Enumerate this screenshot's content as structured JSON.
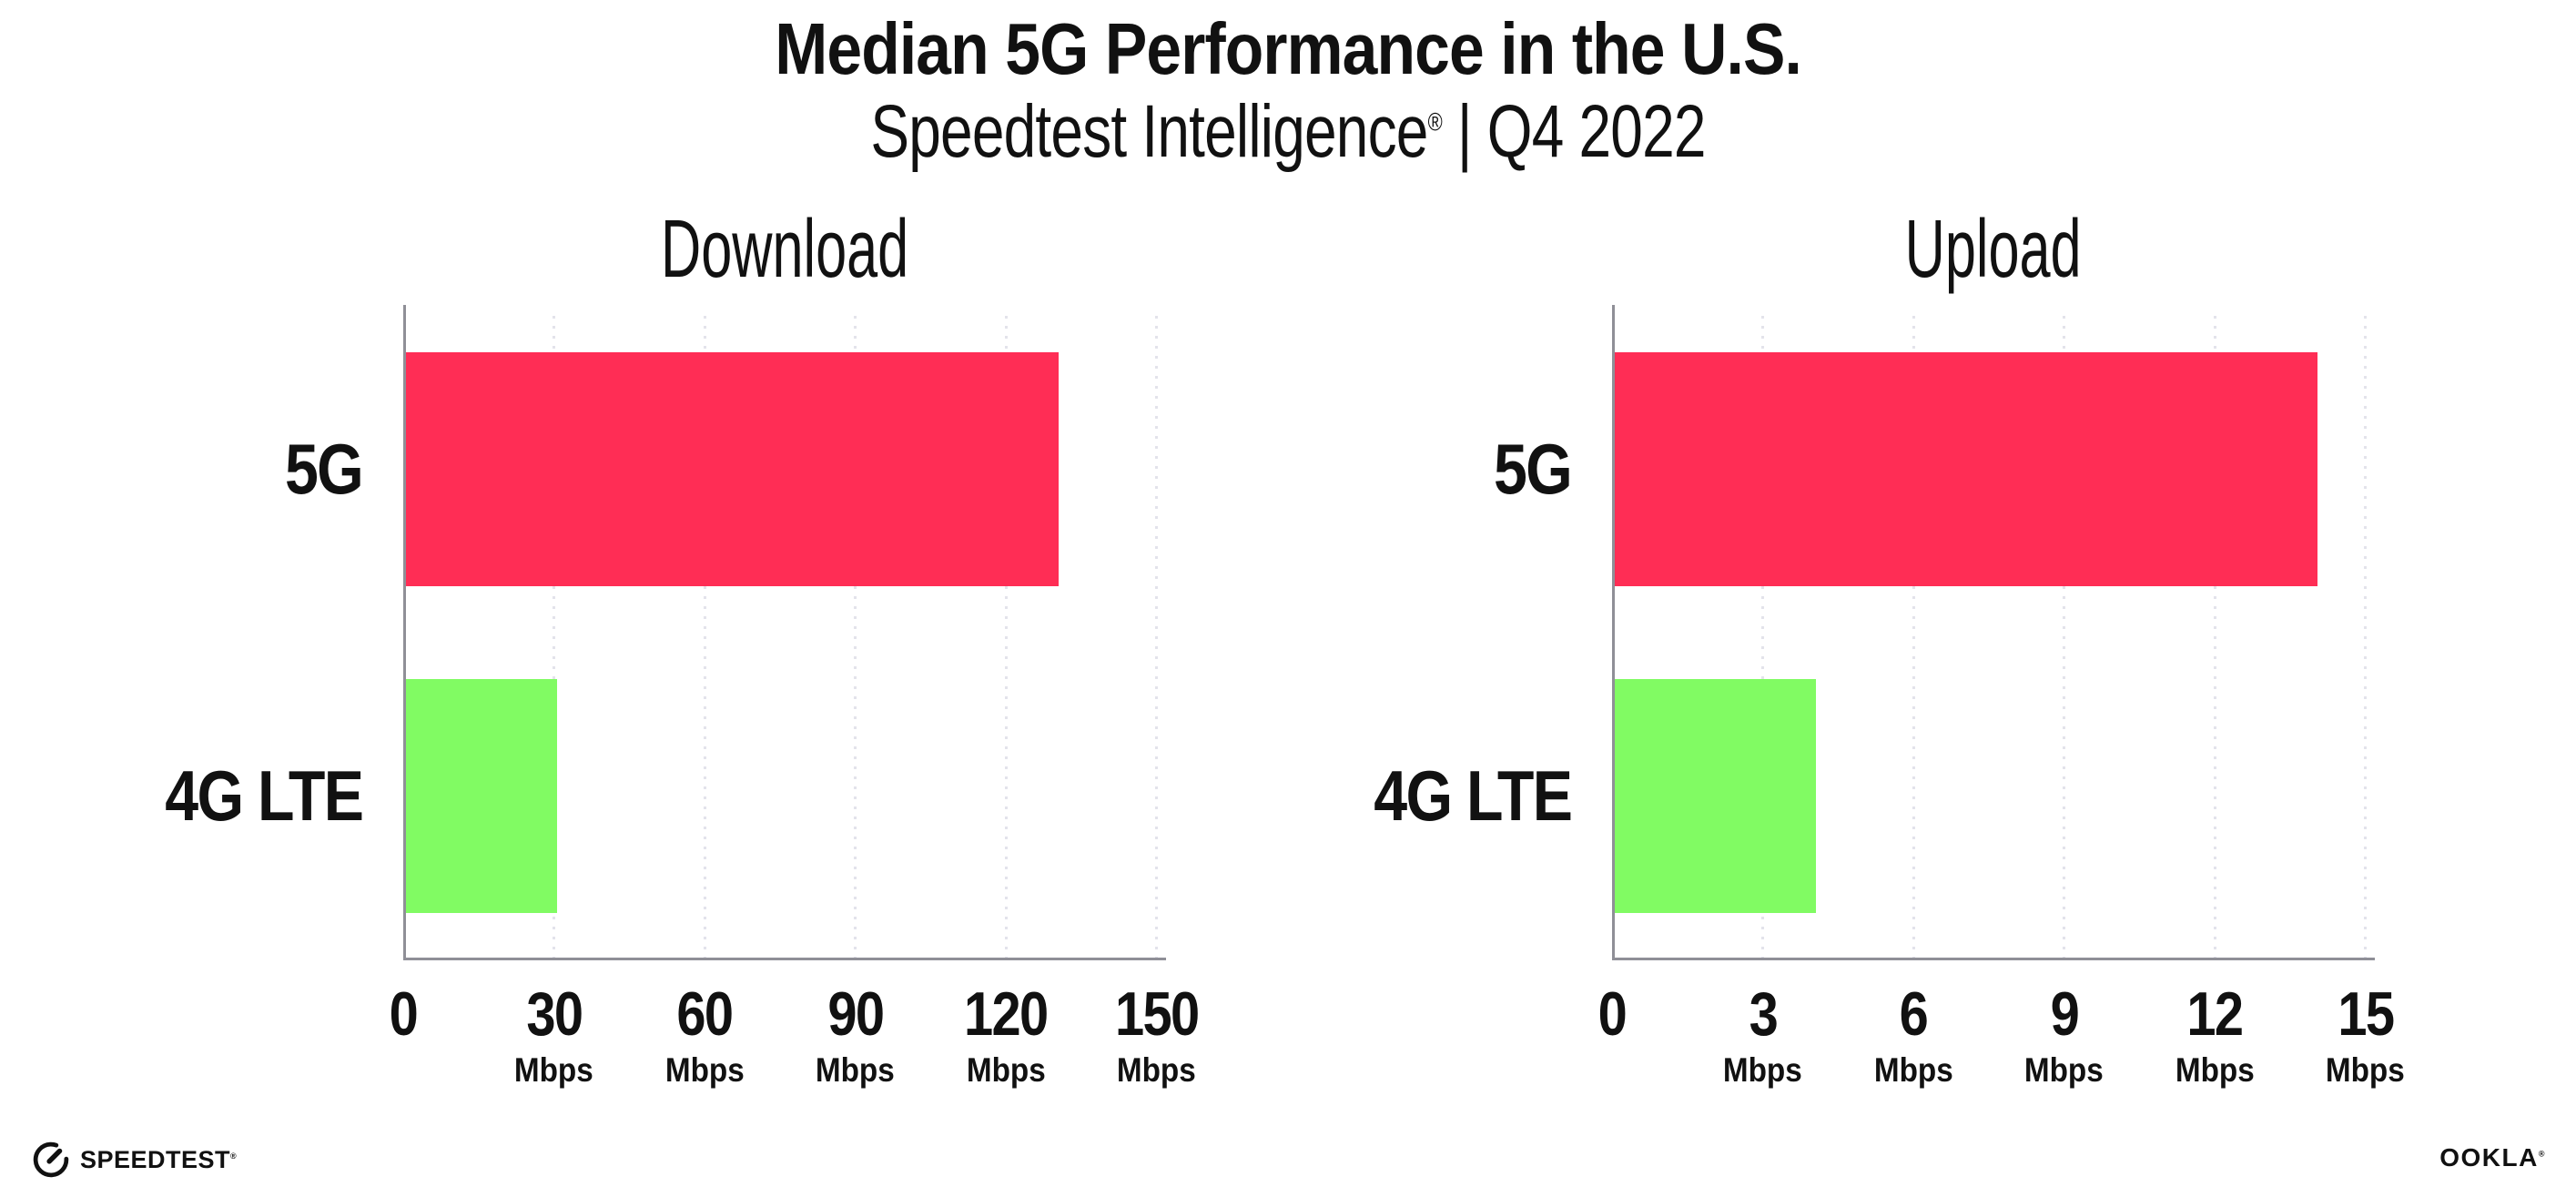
{
  "page": {
    "title": "Median 5G Performance in the U.S.",
    "subtitle_brand": "Speedtest Intelligence",
    "subtitle_reg": "®",
    "subtitle_rest": " | Q4 2022"
  },
  "footer": {
    "speedtest_label": "SPEEDTEST",
    "speedtest_reg": "®",
    "ookla_label": "OOKLA",
    "ookla_reg": "®"
  },
  "colors": {
    "bar_5g": "#FF2D55",
    "bar_4g_lte": "#81FB63",
    "gridline": "#E3E3EB",
    "axis": "#8F8F97",
    "text": "#111111"
  },
  "chart_data": [
    {
      "type": "bar",
      "orientation": "horizontal",
      "title": "Download",
      "categories": [
        "5G",
        "4G LTE"
      ],
      "values": [
        130,
        30
      ],
      "value_unit": "Mbps",
      "xlim": [
        0,
        150
      ],
      "xticks": [
        0,
        30,
        60,
        90,
        120,
        150
      ],
      "xtick_unit_label": "Mbps",
      "bar_colors": [
        "#FF2D55",
        "#81FB63"
      ],
      "grid": "dotted-vertical",
      "legend": "none"
    },
    {
      "type": "bar",
      "orientation": "horizontal",
      "title": "Upload",
      "categories": [
        "5G",
        "4G LTE"
      ],
      "values": [
        14,
        4
      ],
      "value_unit": "Mbps",
      "xlim": [
        0,
        15
      ],
      "xticks": [
        0,
        3,
        6,
        9,
        12,
        15
      ],
      "xtick_unit_label": "Mbps",
      "bar_colors": [
        "#FF2D55",
        "#81FB63"
      ],
      "grid": "dotted-vertical",
      "legend": "none"
    }
  ]
}
